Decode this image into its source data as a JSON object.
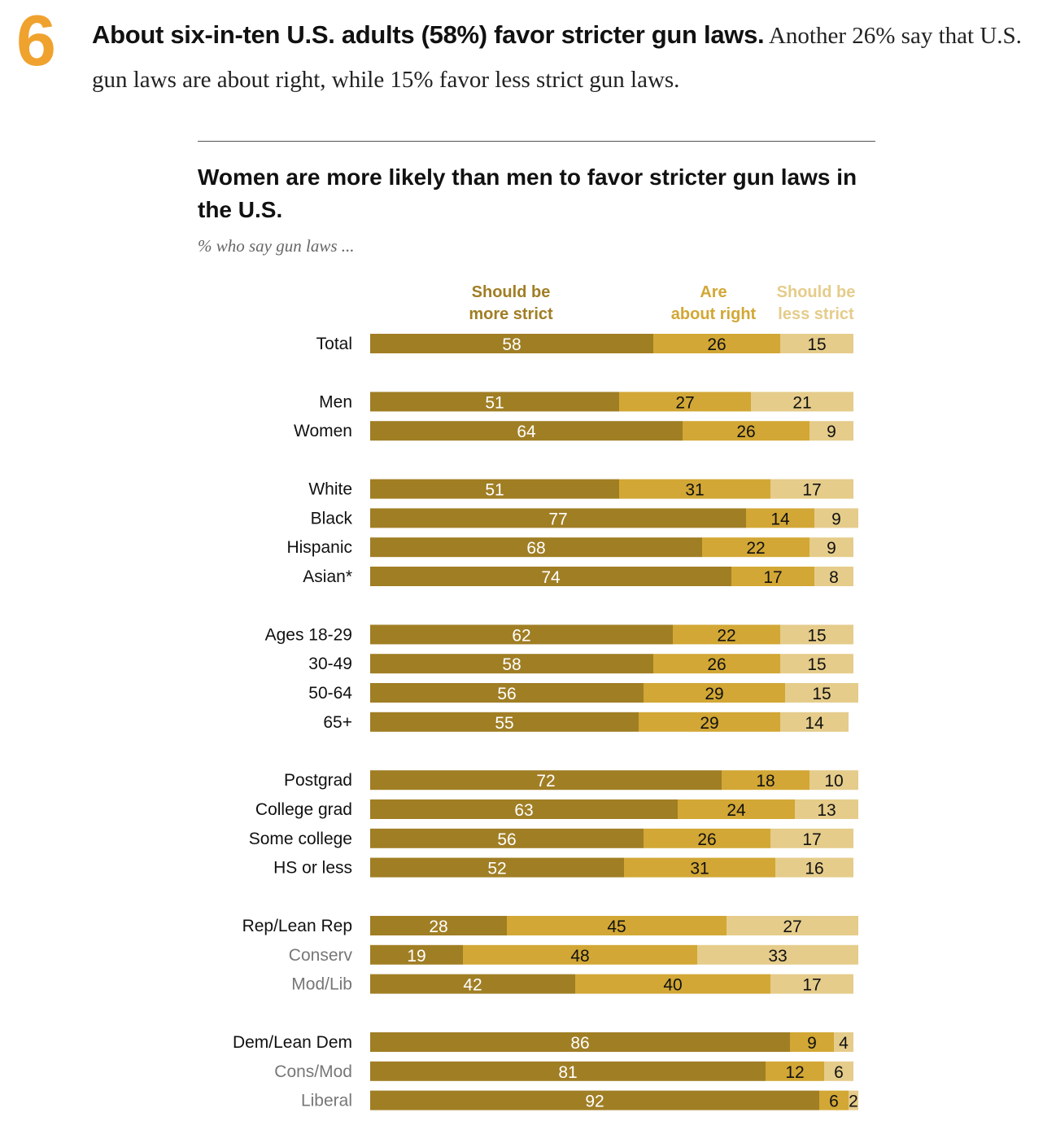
{
  "header": {
    "number": "6",
    "lead": "About six-in-ten U.S. adults (58%) favor stricter gun laws.",
    "text": "Another 26% say that U.S. gun laws are about right, while 15% favor less strict gun laws."
  },
  "chart_data": {
    "type": "bar",
    "orientation": "horizontal",
    "stacked": true,
    "title": "Women are more likely than men to favor stricter gun laws in the U.S.",
    "subtitle": "% who say gun laws ...",
    "legend_position": "top",
    "series": [
      {
        "name": "Should be more strict",
        "label_lines": [
          "Should be",
          "more strict"
        ],
        "color": "#a07e24",
        "values": [
          58,
          51,
          64,
          51,
          77,
          68,
          74,
          62,
          58,
          56,
          55,
          72,
          63,
          56,
          52,
          28,
          19,
          42,
          86,
          81,
          92
        ]
      },
      {
        "name": "Are about right",
        "label_lines": [
          "Are",
          "about right"
        ],
        "color": "#d2a735",
        "values": [
          26,
          27,
          26,
          31,
          14,
          22,
          17,
          22,
          26,
          29,
          29,
          18,
          24,
          26,
          31,
          45,
          48,
          40,
          9,
          12,
          6
        ]
      },
      {
        "name": "Should be less strict",
        "label_lines": [
          "Should be",
          "less strict"
        ],
        "color": "#e5cc8a",
        "values": [
          15,
          21,
          9,
          17,
          9,
          9,
          8,
          15,
          15,
          15,
          14,
          10,
          13,
          17,
          16,
          27,
          33,
          17,
          4,
          6,
          2
        ]
      }
    ],
    "categories": [
      "Total",
      "Men",
      "Women",
      "White",
      "Black",
      "Hispanic",
      "Asian*",
      "Ages 18-29",
      "30-49",
      "50-64",
      "65+",
      "Postgrad",
      "College grad",
      "Some college",
      "HS or less",
      "Rep/Lean Rep",
      "Conserv",
      "Mod/Lib",
      "Dem/Lean Dem",
      "Cons/Mod",
      "Liberal"
    ],
    "category_groups": [
      0,
      1,
      1,
      2,
      2,
      2,
      2,
      3,
      3,
      3,
      3,
      4,
      4,
      4,
      4,
      5,
      5,
      5,
      6,
      6,
      6
    ],
    "subcategories": [
      16,
      17,
      19,
      20
    ],
    "xlim": [
      0,
      100
    ],
    "grid": false
  },
  "colors": {
    "accent_number": "#f0a22e",
    "label_dark": "#111111",
    "label_sub": "#777777",
    "value_on_dark": "#ffffff",
    "value_on_light": "#111111"
  }
}
